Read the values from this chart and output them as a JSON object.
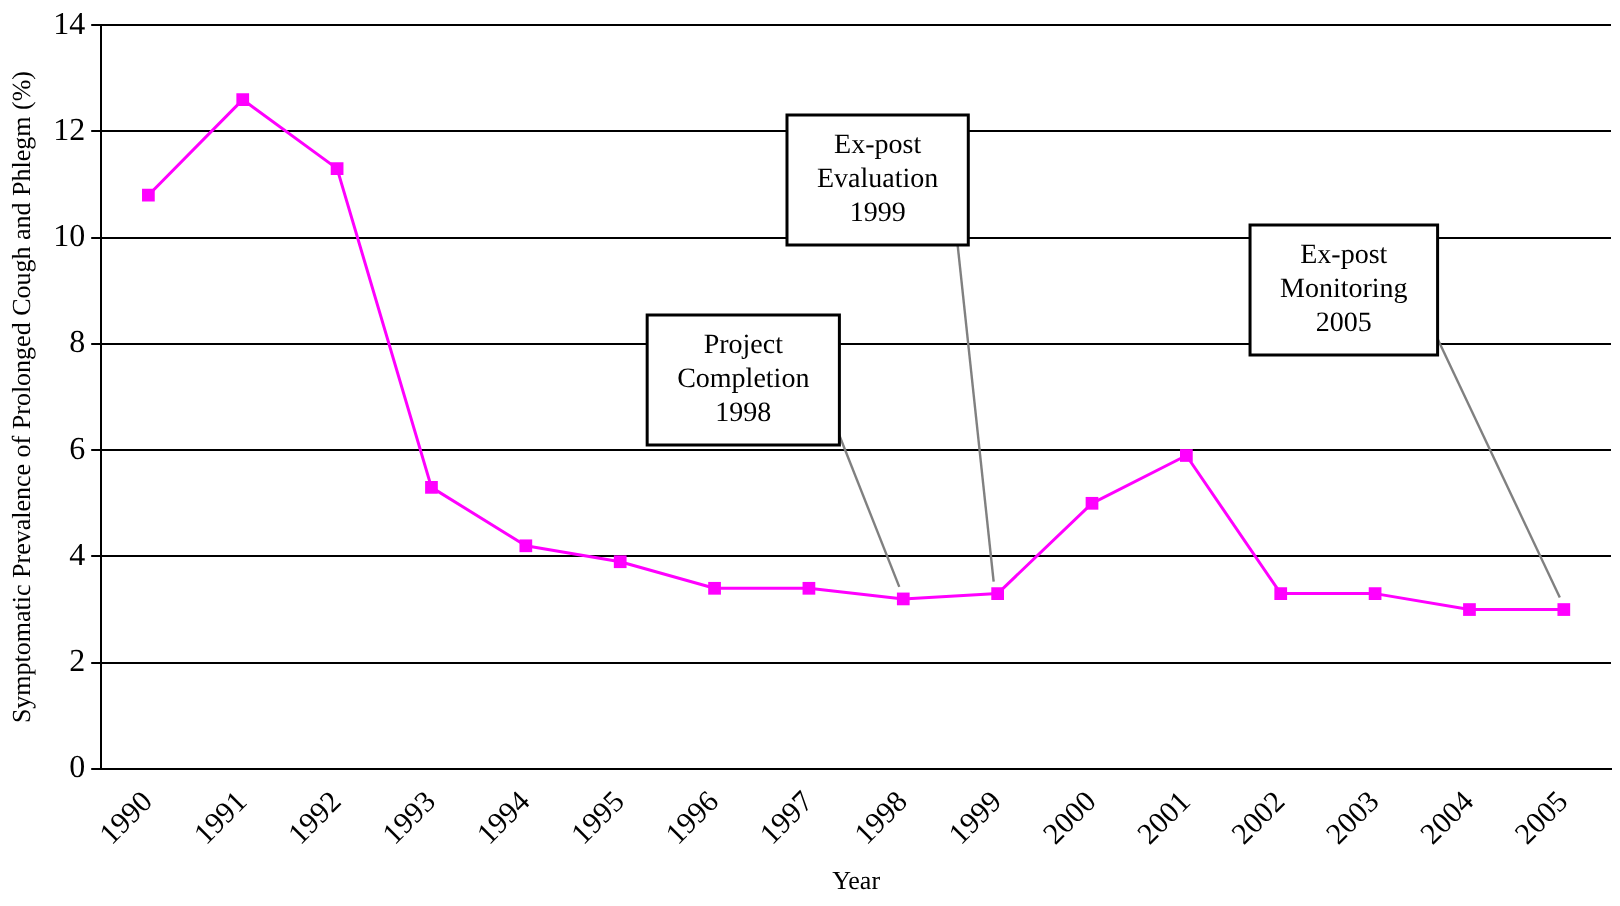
{
  "chart_data": {
    "type": "line",
    "xlabel": "Year",
    "ylabel": "Symptomatic Prevalence of Prolonged Cough and Phlegm (%)",
    "categories": [
      "1990",
      "1991",
      "1992",
      "1993",
      "1994",
      "1995",
      "1996",
      "1997",
      "1998",
      "1999",
      "2000",
      "2001",
      "2002",
      "2003",
      "2004",
      "2005"
    ],
    "series": [
      {
        "color": "#ff00ff",
        "values": [
          10.8,
          12.6,
          11.3,
          5.3,
          4.2,
          3.9,
          3.4,
          3.4,
          3.2,
          3.3,
          5.0,
          5.9,
          3.3,
          3.3,
          3.0,
          3.0
        ]
      }
    ],
    "ylim": [
      0,
      14
    ],
    "yticks": [
      0,
      2,
      4,
      6,
      8,
      10,
      12,
      14
    ],
    "grid": "y",
    "legend": false,
    "marker": "square",
    "line_style": "solid",
    "annotations": [
      {
        "text": "Project\nCompletion\n1998",
        "x": "1998",
        "y": 3.2
      },
      {
        "text": "Ex-post\nEvaluation\n1999",
        "x": "1999",
        "y": 3.3
      },
      {
        "text": "Ex-post\nMonitoring\n2005",
        "x": "2005",
        "y": 3.0
      }
    ]
  }
}
